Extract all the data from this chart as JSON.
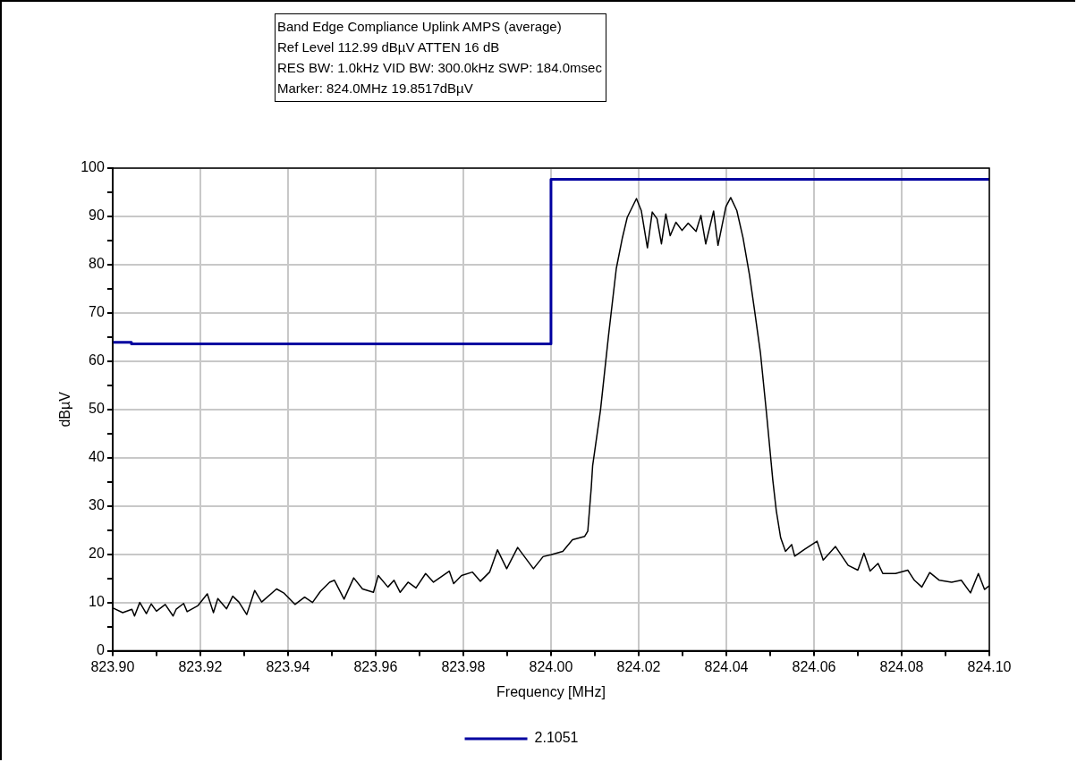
{
  "chart_data": {
    "type": "line",
    "title": "Band Edge Compliance Uplink AMPS (average)",
    "annotations": [
      "Ref Level 112.99 dBµV    ATTEN 16 dB",
      "RES BW: 1.0kHz  VID BW: 300.0kHz  SWP: 184.0msec",
      "Marker: 824.0MHz  19.8517dBµV"
    ],
    "xlabel": "Frequency [MHz]",
    "ylabel": "dBµV",
    "xlim": [
      823.9,
      824.1
    ],
    "xticks": [
      {
        "value": 823.9,
        "label": "823.90"
      },
      {
        "value": 823.91,
        "label": null
      },
      {
        "value": 823.92,
        "label": "823.92"
      },
      {
        "value": 823.93,
        "label": null
      },
      {
        "value": 823.94,
        "label": "823.94"
      },
      {
        "value": 823.95,
        "label": null
      },
      {
        "value": 823.96,
        "label": "823.96"
      },
      {
        "value": 823.97,
        "label": null
      },
      {
        "value": 823.98,
        "label": "823.98"
      },
      {
        "value": 823.99,
        "label": null
      },
      {
        "value": 824.0,
        "label": "824.00"
      },
      {
        "value": 824.01,
        "label": null
      },
      {
        "value": 824.02,
        "label": "824.02"
      },
      {
        "value": 824.03,
        "label": null
      },
      {
        "value": 824.04,
        "label": "824.04"
      },
      {
        "value": 824.05,
        "label": null
      },
      {
        "value": 824.06,
        "label": "824.06"
      },
      {
        "value": 824.07,
        "label": null
      },
      {
        "value": 824.08,
        "label": "824.08"
      },
      {
        "value": 824.09,
        "label": null
      },
      {
        "value": 824.1,
        "label": "824.10"
      }
    ],
    "ylim": [
      0,
      100
    ],
    "yticks": [
      0,
      {
        "value": 5,
        "label": null
      },
      10,
      {
        "value": 15,
        "label": null
      },
      20,
      {
        "value": 25,
        "label": null
      },
      30,
      {
        "value": 35,
        "label": null
      },
      40,
      {
        "value": 45,
        "label": null
      },
      50,
      {
        "value": 55,
        "label": null
      },
      60,
      {
        "value": 65,
        "label": null
      },
      70,
      {
        "value": 75,
        "label": null
      },
      80,
      {
        "value": 85,
        "label": null
      },
      90,
      {
        "value": 95,
        "label": null
      },
      100
    ],
    "grid": true,
    "legend": "bottom",
    "marker": "none",
    "line_style": "solid",
    "series": [
      {
        "type": "line",
        "color": "#000000",
        "x": [
          823.9,
          823.9023,
          823.9044,
          823.905,
          823.9062,
          823.9077,
          823.9088,
          823.91,
          823.912,
          823.9138,
          823.9145,
          823.9162,
          823.917,
          823.9194,
          823.9216,
          823.923,
          823.924,
          823.926,
          823.9274,
          823.9288,
          823.9306,
          823.9324,
          823.934,
          823.9374,
          823.939,
          823.9416,
          823.9438,
          823.9456,
          823.9474,
          823.9495,
          823.9506,
          823.9528,
          823.955,
          823.957,
          823.9595,
          823.9606,
          823.9628,
          823.9642,
          823.9656,
          823.9674,
          823.9692,
          823.9714,
          823.9732,
          823.9768,
          823.9778,
          823.9796,
          823.9821,
          823.9839,
          823.986,
          823.9878,
          823.9899,
          823.9924,
          823.996,
          823.9982,
          824.0,
          824.0027,
          824.0049,
          824.0077,
          824.0084,
          824.0092,
          824.0095,
          824.0113,
          824.0131,
          824.0149,
          824.0163,
          824.0174,
          824.0195,
          824.0206,
          824.022,
          824.0231,
          824.0242,
          824.0252,
          824.0262,
          824.0272,
          824.0285,
          824.0299,
          824.0313,
          824.0331,
          824.0342,
          824.0353,
          824.0371,
          824.0381,
          824.0399,
          824.041,
          824.0424,
          824.0438,
          824.0453,
          824.0464,
          824.0478,
          824.0492,
          824.0506,
          824.0514,
          824.0524,
          824.0535,
          824.0549,
          824.0556,
          824.0578,
          824.0607,
          824.0621,
          824.0649,
          824.0678,
          824.07,
          824.0714,
          824.0728,
          824.0746,
          824.0757,
          824.0786,
          824.0814,
          824.0829,
          824.0846,
          824.0864,
          824.0886,
          824.0914,
          824.0936,
          824.0957,
          824.0975,
          824.0989,
          824.1
        ],
        "values": [
          8.9,
          7.9,
          8.6,
          7.2,
          10.0,
          7.7,
          9.7,
          8.2,
          9.6,
          7.2,
          8.6,
          9.8,
          8.1,
          9.3,
          11.8,
          7.9,
          10.8,
          8.7,
          11.3,
          10.1,
          7.5,
          12.5,
          10.1,
          12.8,
          12.0,
          9.6,
          11.1,
          10.0,
          12.3,
          14.2,
          14.6,
          10.7,
          15.1,
          12.8,
          12.1,
          15.6,
          13.2,
          14.6,
          12.1,
          14.2,
          13.0,
          16.0,
          14.2,
          16.5,
          13.9,
          15.6,
          16.3,
          14.4,
          16.3,
          20.9,
          17.0,
          21.4,
          17.0,
          19.5,
          19.9,
          20.6,
          23.0,
          23.7,
          24.8,
          33.9,
          38.3,
          49.9,
          65.1,
          79.2,
          85.6,
          89.8,
          93.7,
          91.2,
          83.5,
          90.9,
          89.5,
          84.3,
          90.5,
          86.0,
          88.8,
          87.1,
          88.6,
          86.9,
          90.2,
          84.3,
          91.1,
          84.0,
          92.0,
          93.9,
          91.2,
          85.6,
          77.8,
          70.8,
          61.6,
          48.9,
          35.4,
          29.0,
          23.4,
          20.6,
          22.0,
          19.6,
          21.0,
          22.7,
          18.8,
          21.6,
          17.7,
          16.7,
          20.2,
          16.5,
          18.1,
          16.0,
          16.0,
          16.7,
          14.6,
          13.2,
          16.2,
          14.6,
          14.2,
          14.6,
          12.0,
          16.0,
          12.7,
          13.5
        ]
      },
      {
        "type": "step",
        "name": "2.1051",
        "color": "#0000a0",
        "x": [
          823.9,
          823.9043,
          824.0,
          824.1
        ],
        "values": [
          63.9,
          63.6,
          97.7,
          97.7
        ]
      }
    ]
  }
}
